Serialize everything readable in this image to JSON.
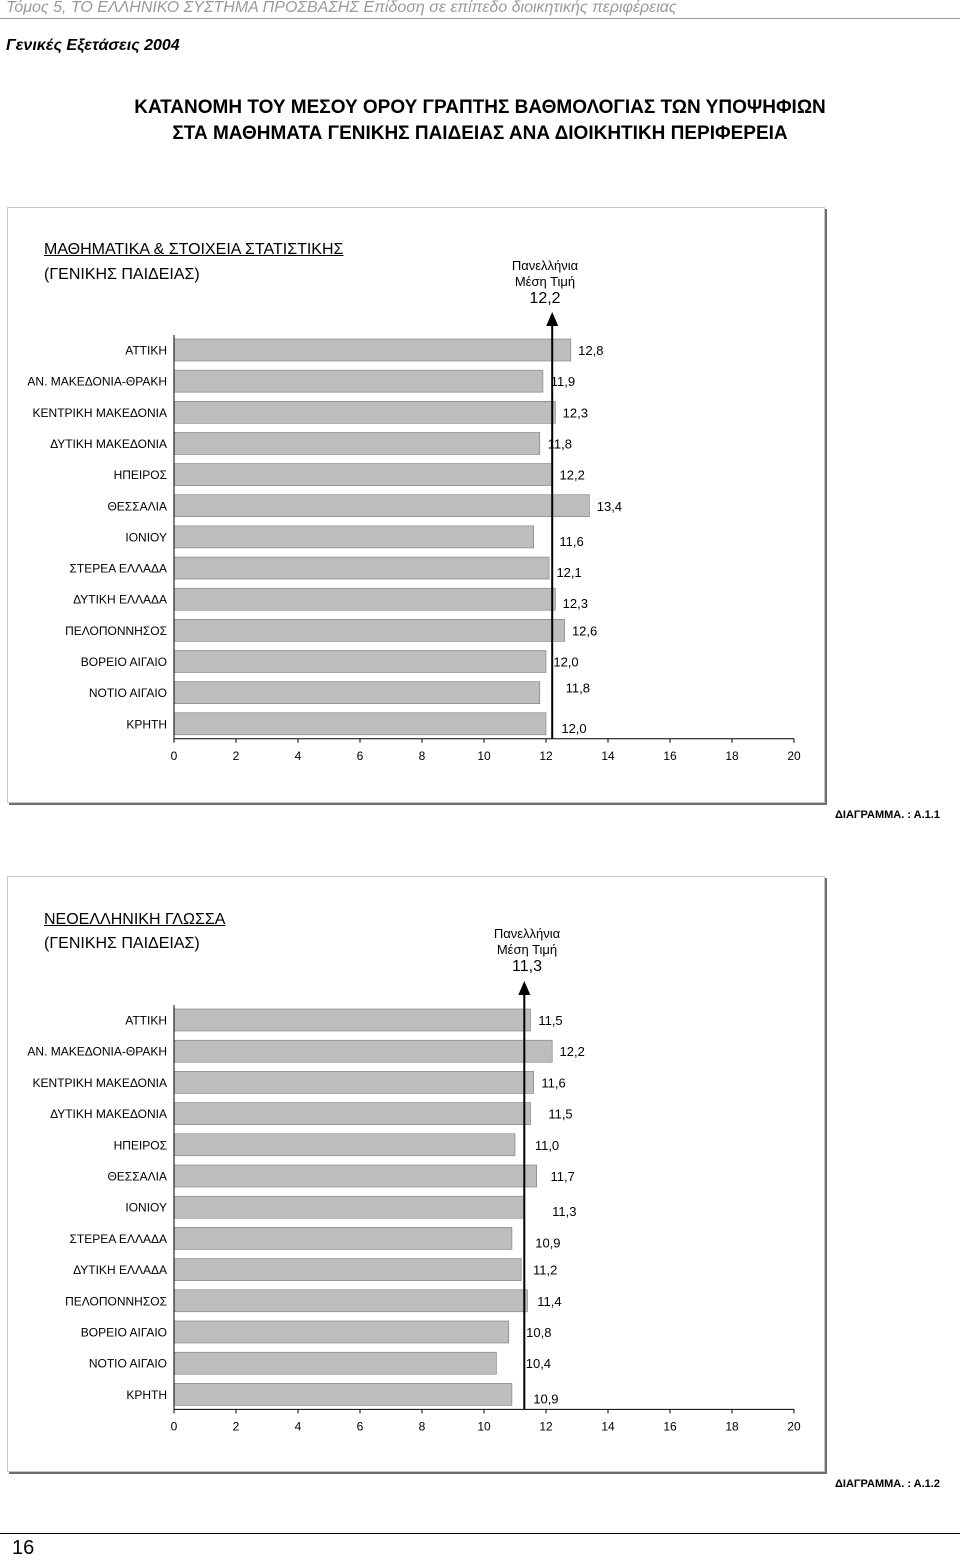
{
  "header": {
    "running_title": "Τόμος 5, ΤΟ ΕΛΛΗΝΙΚΟ ΣΥΣΤΗΜΑ ΠΡΟΣΒΑΣΗΣ Επίδοση σε επίπεδο διοικητικής περιφέρειας",
    "subtitle": "Γενικές Εξετάσεις 2004"
  },
  "page_title": {
    "line1": "ΚΑΤΑΝΟΜΗ ΤΟΥ ΜΕΣΟΥ ΟΡΟΥ ΓΡΑΠΤΗΣ ΒΑΘΜΟΛΟΓΙΑΣ ΤΩΝ ΥΠΟΨΗΦΙΩΝ",
    "line2": "ΣΤΑ ΜΑΘΗΜΑΤΑ ΓΕΝΙΚΗΣ ΠΑΙΔΕΙΑΣ ΑΝΑ ΔΙΟΙΚΗΤΙΚΗ ΠΕΡΙΦΕΡΕΙΑ"
  },
  "footer": {
    "page_number": "16"
  },
  "colors": {
    "bar": "#bdbdbd",
    "bar_edge": "#7a7a7a",
    "marker": "#000000"
  },
  "chart_data": [
    {
      "type": "bar",
      "orientation": "horizontal",
      "title_line1": "ΜΑΘΗΜΑΤΙΚΑ & ΣΤΟΙΧΕΙΑ ΣΤΑΤΙΣΤΙΚΗΣ",
      "title_line2": "(ΓΕΝΙΚΗΣ ΠΑΙΔΕΙΑΣ)",
      "reference": {
        "label_line1": "Πανελλήνια",
        "label_line2": "Μέση Τιμή",
        "value_label": "12,2",
        "value": 12.2
      },
      "categories": [
        "ΑΤΤΙΚΗ",
        "ΑΝ. ΜΑΚΕΔΟΝΙΑ-ΘΡΑΚΗ",
        "ΚΕΝΤΡΙΚΗ ΜΑΚΕΔΟΝΙΑ",
        "ΔΥΤΙΚΗ ΜΑΚΕΔΟΝΙΑ",
        "ΗΠΕΙΡΟΣ",
        "ΘΕΣΣΑΛΙΑ",
        "ΙΟΝΙΟΥ",
        "ΣΤΕΡΕΑ ΕΛΛΑΔΑ",
        "ΔΥΤΙΚΗ ΕΛΛΑΔΑ",
        "ΠΕΛΟΠΟΝΝΗΣΟΣ",
        "ΒΟΡΕΙΟ ΑΙΓΑΙΟ",
        "ΝΟΤΙΟ ΑΙΓΑΙΟ",
        "ΚΡΗΤΗ"
      ],
      "values": [
        12.8,
        11.9,
        12.3,
        11.8,
        12.2,
        13.4,
        11.6,
        12.1,
        12.3,
        12.6,
        12.0,
        11.8,
        12.0
      ],
      "value_labels": [
        "12,8",
        "11,9",
        "12,3",
        "11,8",
        "12,2",
        "13,4",
        "11,6",
        "12,1",
        "12,3",
        "12,6",
        "12,0",
        "11,8",
        "12,0"
      ],
      "xlim": [
        0,
        20
      ],
      "xticks": [
        "0",
        "2",
        "4",
        "6",
        "8",
        "10",
        "12",
        "14",
        "16",
        "18",
        "20"
      ],
      "caption": "ΔΙΑΓΡΑΜΜΑ. : Α.1.1"
    },
    {
      "type": "bar",
      "orientation": "horizontal",
      "title_line1": "ΝΕΟΕΛΛΗΝΙΚΗ ΓΛΩΣΣΑ",
      "title_line2": "(ΓΕΝΙΚΗΣ ΠΑΙΔΕΙΑΣ)",
      "reference": {
        "label_line1": "Πανελλήνια",
        "label_line2": "Μέση Τιμή",
        "value_label": "11,3",
        "value": 11.3
      },
      "categories": [
        "ΑΤΤΙΚΗ",
        "ΑΝ. ΜΑΚΕΔΟΝΙΑ-ΘΡΑΚΗ",
        "ΚΕΝΤΡΙΚΗ ΜΑΚΕΔΟΝΙΑ",
        "ΔΥΤΙΚΗ ΜΑΚΕΔΟΝΙΑ",
        "ΗΠΕΙΡΟΣ",
        "ΘΕΣΣΑΛΙΑ",
        "ΙΟΝΙΟΥ",
        "ΣΤΕΡΕΑ ΕΛΛΑΔΑ",
        "ΔΥΤΙΚΗ ΕΛΛΑΔΑ",
        "ΠΕΛΟΠΟΝΝΗΣΟΣ",
        "ΒΟΡΕΙΟ ΑΙΓΑΙΟ",
        "ΝΟΤΙΟ ΑΙΓΑΙΟ",
        "ΚΡΗΤΗ"
      ],
      "values": [
        11.5,
        12.2,
        11.6,
        11.5,
        11.0,
        11.7,
        11.3,
        10.9,
        11.2,
        11.4,
        10.8,
        10.4,
        10.9
      ],
      "value_labels": [
        "11,5",
        "12,2",
        "11,6",
        "11,5",
        "11,0",
        "11,7",
        "11,3",
        "10,9",
        "11,2",
        "11,4",
        "10,8",
        "10,4",
        "10,9"
      ],
      "xlim": [
        0,
        20
      ],
      "xticks": [
        "0",
        "2",
        "4",
        "6",
        "8",
        "10",
        "12",
        "14",
        "16",
        "18",
        "20"
      ],
      "caption": "ΔΙΑΓΡΑΜΜΑ. : Α.1.2"
    }
  ]
}
